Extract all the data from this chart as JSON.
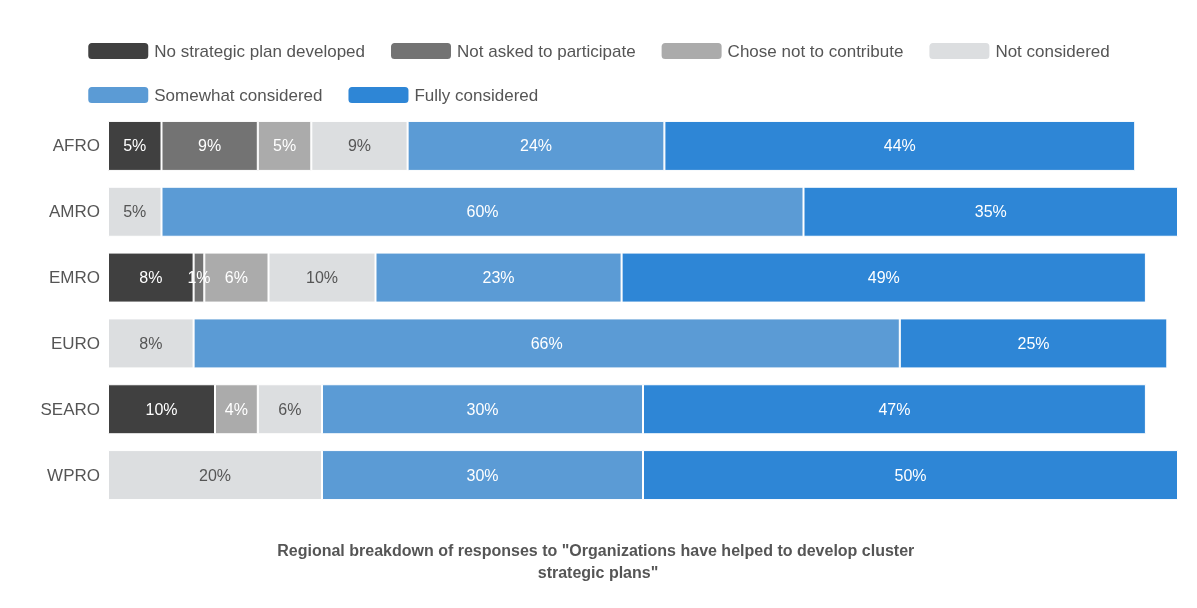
{
  "chart_data": {
    "type": "bar",
    "orientation": "horizontal",
    "stacked": true,
    "title": "Regional breakdown of responses to \"Organizations have helped to develop cluster strategic plans\"",
    "categories": [
      "AFRO",
      "AMRO",
      "EMRO",
      "EURO",
      "SEARO",
      "WPRO"
    ],
    "xlim": [
      0,
      100
    ],
    "tick_labels": "y",
    "legend": "top",
    "series": [
      {
        "name": "No strategic plan developed",
        "color": "#404040",
        "values": [
          5,
          null,
          8,
          null,
          10,
          null
        ],
        "value_labels": [
          "5%",
          null,
          "8%",
          null,
          "10%",
          null
        ]
      },
      {
        "name": "Not asked to participate",
        "color": "#737373",
        "values": [
          9,
          null,
          1,
          null,
          null,
          null
        ],
        "value_labels": [
          "9%",
          null,
          "1%",
          null,
          null,
          null
        ]
      },
      {
        "name": "Chose not to contribute",
        "color": "#ababab",
        "values": [
          5,
          null,
          6,
          null,
          4,
          null
        ],
        "value_labels": [
          "5%",
          null,
          "6%",
          null,
          "4%",
          null
        ]
      },
      {
        "name": "Not considered",
        "color": "#dcdee0",
        "values": [
          9,
          5,
          10,
          8,
          6,
          20
        ],
        "value_labels": [
          "9%",
          "5%",
          "10%",
          "8%",
          "6%",
          "20%"
        ]
      },
      {
        "name": "Somewhat considered",
        "color": "#5b9bd5",
        "values": [
          24,
          60,
          23,
          66,
          30,
          30
        ],
        "value_labels": [
          "24%",
          "60%",
          "23%",
          "66%",
          "30%",
          "30%"
        ]
      },
      {
        "name": "Fully considered",
        "color": "#2e86d6",
        "values": [
          44,
          35,
          49,
          25,
          47,
          50
        ],
        "value_labels": [
          "44%",
          "35%",
          "49%",
          "25%",
          "47%",
          "50%"
        ]
      }
    ]
  }
}
